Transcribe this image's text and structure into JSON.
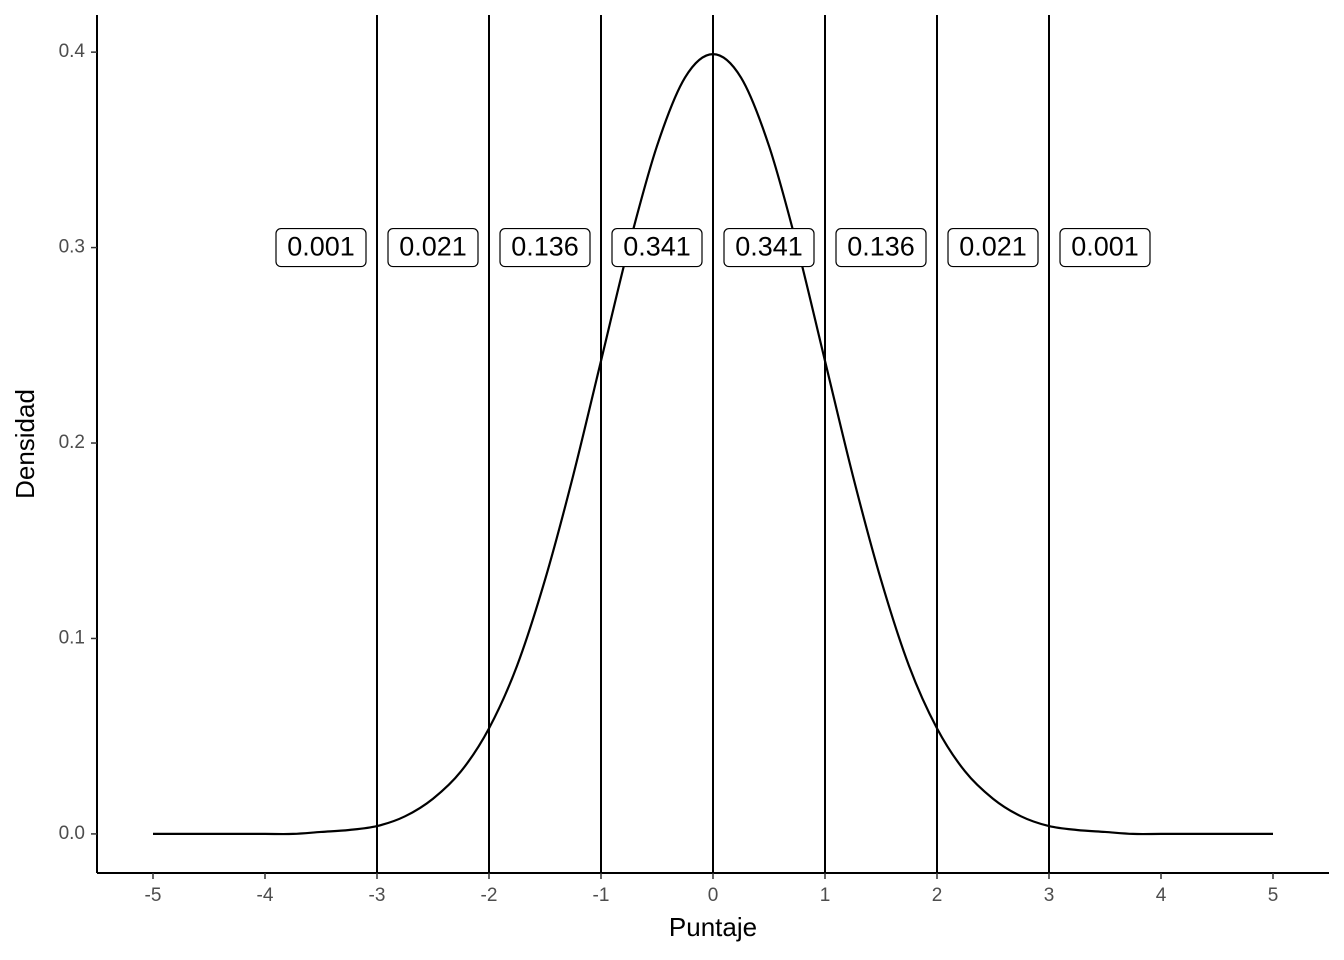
{
  "chart_data": {
    "type": "line",
    "x_label": "Puntaje",
    "y_label": "Densidad",
    "x": [
      -5,
      -4.75,
      -4.5,
      -4.25,
      -4,
      -3.75,
      -3.5,
      -3.25,
      -3,
      -2.75,
      -2.5,
      -2.25,
      -2,
      -1.75,
      -1.5,
      -1.25,
      -1,
      -0.75,
      -0.5,
      -0.25,
      0,
      0.25,
      0.5,
      0.75,
      1,
      1.25,
      1.5,
      1.75,
      2,
      2.25,
      2.5,
      2.75,
      3,
      3.25,
      3.5,
      3.75,
      4,
      4.25,
      4.5,
      4.75,
      5
    ],
    "series": [
      {
        "name": "Densidad",
        "color": "#000000",
        "values": [
          0,
          0,
          0,
          0,
          0,
          0,
          0.001,
          0.002,
          0.004,
          0.009,
          0.018,
          0.032,
          0.054,
          0.086,
          0.13,
          0.183,
          0.242,
          0.301,
          0.352,
          0.387,
          0.399,
          0.387,
          0.352,
          0.301,
          0.242,
          0.183,
          0.13,
          0.086,
          0.054,
          0.032,
          0.018,
          0.009,
          0.004,
          0.002,
          0.001,
          0,
          0,
          0,
          0,
          0,
          0
        ]
      }
    ],
    "vlines": [
      -3,
      -2,
      -1,
      0,
      1,
      2,
      3
    ],
    "annotations": [
      {
        "x": -3.5,
        "y": 0.3,
        "text": "0.001"
      },
      {
        "x": -2.5,
        "y": 0.3,
        "text": "0.021"
      },
      {
        "x": -1.5,
        "y": 0.3,
        "text": "0.136"
      },
      {
        "x": -0.5,
        "y": 0.3,
        "text": "0.341"
      },
      {
        "x": 0.5,
        "y": 0.3,
        "text": "0.341"
      },
      {
        "x": 1.5,
        "y": 0.3,
        "text": "0.136"
      },
      {
        "x": 2.5,
        "y": 0.3,
        "text": "0.021"
      },
      {
        "x": 3.5,
        "y": 0.3,
        "text": "0.001"
      }
    ],
    "xlim": [
      -5.5,
      5.5
    ],
    "ylim": [
      -0.02,
      0.419
    ],
    "xticks": [
      -5,
      -4,
      -3,
      -2,
      -1,
      0,
      1,
      2,
      3,
      4,
      5
    ],
    "yticks": [
      {
        "value": 0,
        "label": "0.0"
      },
      0.1,
      0.2,
      0.3,
      0.4
    ],
    "grid": false
  }
}
